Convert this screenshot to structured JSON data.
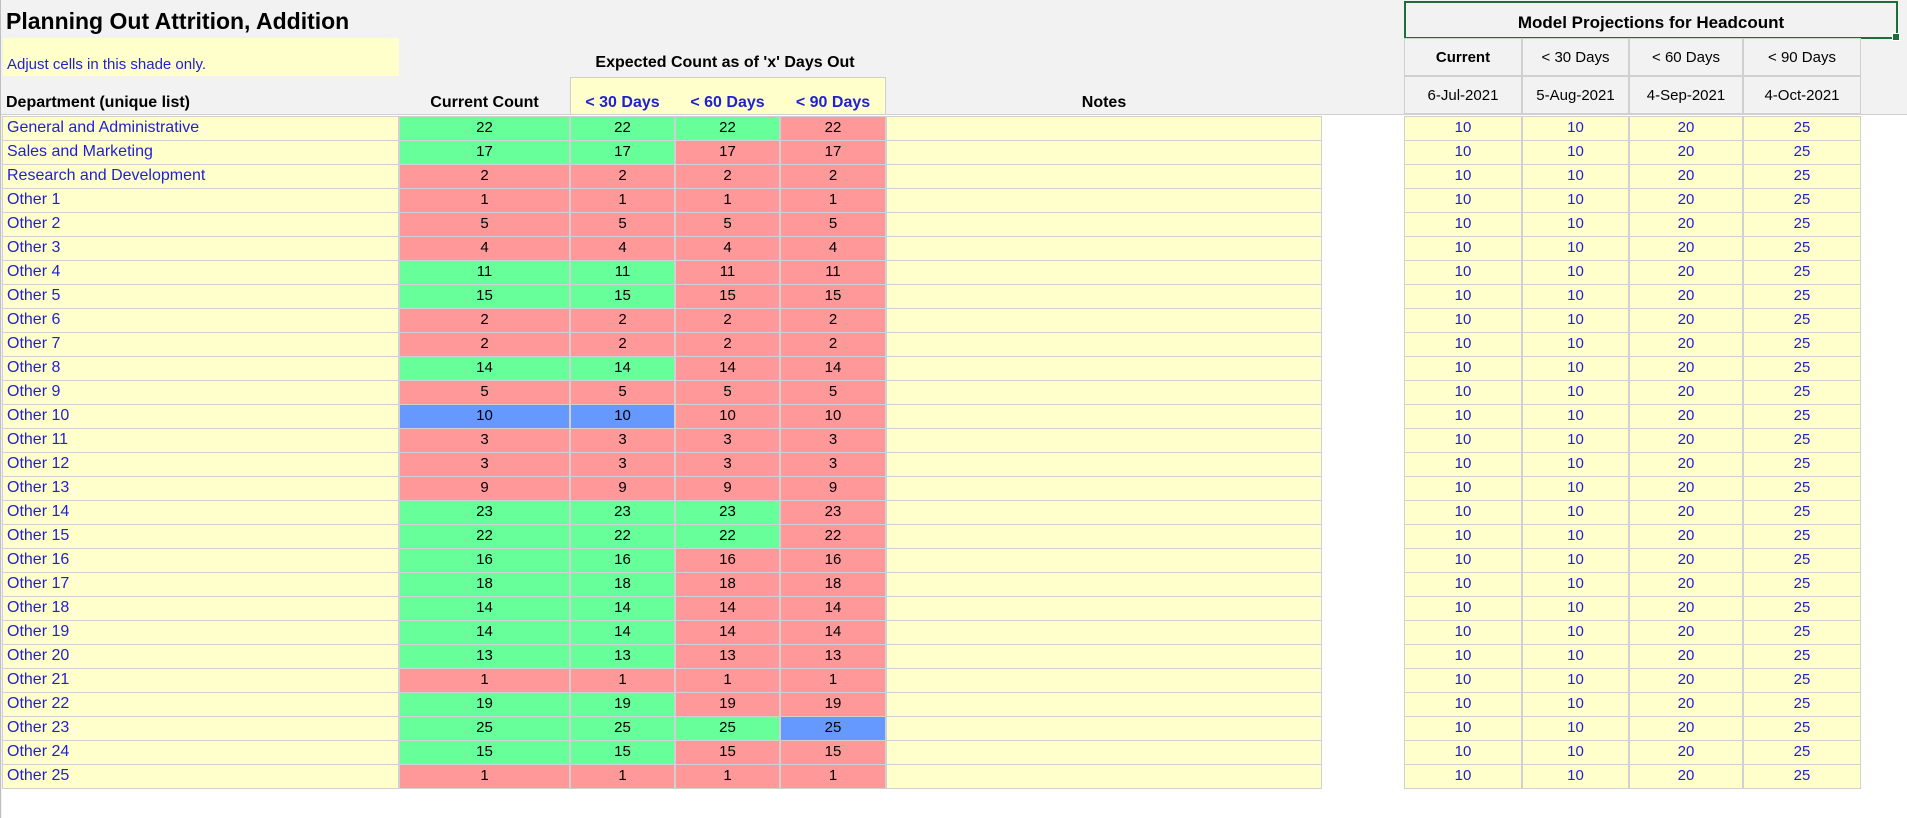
{
  "title": "Planning Out Attrition, Addition",
  "note": "Adjust cells in this shade only.",
  "expected_header": "Expected Count as of 'x' Days Out",
  "columns": {
    "department": "Department (unique list)",
    "current": "Current Count",
    "d30": "< 30 Days",
    "d60": "< 60 Days",
    "d90": "< 90 Days",
    "notes": "Notes"
  },
  "model": {
    "title": "Model Projections for Headcount",
    "headers": [
      "Current",
      "< 30 Days",
      "< 60 Days",
      "< 90 Days"
    ],
    "dates": [
      "6-Jul-2021",
      "5-Aug-2021",
      "4-Sep-2021",
      "4-Oct-2021"
    ]
  },
  "colors": {
    "green": "#66ff99",
    "red": "#ff9999",
    "blue": "#6699ff",
    "yellow": "#ffffcc",
    "text_blue": "#1f1fd6"
  },
  "rows": [
    {
      "dept": "General and Administrative",
      "current": 22,
      "d30": 22,
      "d60": 22,
      "d90": 22,
      "status": [
        "green",
        "green",
        "green",
        "red"
      ],
      "proj": [
        10,
        10,
        20,
        25
      ]
    },
    {
      "dept": "Sales and Marketing",
      "current": 17,
      "d30": 17,
      "d60": 17,
      "d90": 17,
      "status": [
        "green",
        "green",
        "red",
        "red"
      ],
      "proj": [
        10,
        10,
        20,
        25
      ]
    },
    {
      "dept": "Research and Development",
      "current": 2,
      "d30": 2,
      "d60": 2,
      "d90": 2,
      "status": [
        "red",
        "red",
        "red",
        "red"
      ],
      "proj": [
        10,
        10,
        20,
        25
      ]
    },
    {
      "dept": "Other 1",
      "current": 1,
      "d30": 1,
      "d60": 1,
      "d90": 1,
      "status": [
        "red",
        "red",
        "red",
        "red"
      ],
      "proj": [
        10,
        10,
        20,
        25
      ]
    },
    {
      "dept": "Other 2",
      "current": 5,
      "d30": 5,
      "d60": 5,
      "d90": 5,
      "status": [
        "red",
        "red",
        "red",
        "red"
      ],
      "proj": [
        10,
        10,
        20,
        25
      ]
    },
    {
      "dept": "Other 3",
      "current": 4,
      "d30": 4,
      "d60": 4,
      "d90": 4,
      "status": [
        "red",
        "red",
        "red",
        "red"
      ],
      "proj": [
        10,
        10,
        20,
        25
      ]
    },
    {
      "dept": "Other 4",
      "current": 11,
      "d30": 11,
      "d60": 11,
      "d90": 11,
      "status": [
        "green",
        "green",
        "red",
        "red"
      ],
      "proj": [
        10,
        10,
        20,
        25
      ]
    },
    {
      "dept": "Other 5",
      "current": 15,
      "d30": 15,
      "d60": 15,
      "d90": 15,
      "status": [
        "green",
        "green",
        "red",
        "red"
      ],
      "proj": [
        10,
        10,
        20,
        25
      ]
    },
    {
      "dept": "Other 6",
      "current": 2,
      "d30": 2,
      "d60": 2,
      "d90": 2,
      "status": [
        "red",
        "red",
        "red",
        "red"
      ],
      "proj": [
        10,
        10,
        20,
        25
      ]
    },
    {
      "dept": "Other 7",
      "current": 2,
      "d30": 2,
      "d60": 2,
      "d90": 2,
      "status": [
        "red",
        "red",
        "red",
        "red"
      ],
      "proj": [
        10,
        10,
        20,
        25
      ]
    },
    {
      "dept": "Other 8",
      "current": 14,
      "d30": 14,
      "d60": 14,
      "d90": 14,
      "status": [
        "green",
        "green",
        "red",
        "red"
      ],
      "proj": [
        10,
        10,
        20,
        25
      ]
    },
    {
      "dept": "Other 9",
      "current": 5,
      "d30": 5,
      "d60": 5,
      "d90": 5,
      "status": [
        "red",
        "red",
        "red",
        "red"
      ],
      "proj": [
        10,
        10,
        20,
        25
      ]
    },
    {
      "dept": "Other 10",
      "current": 10,
      "d30": 10,
      "d60": 10,
      "d90": 10,
      "status": [
        "blue",
        "blue",
        "red",
        "red"
      ],
      "proj": [
        10,
        10,
        20,
        25
      ]
    },
    {
      "dept": "Other 11",
      "current": 3,
      "d30": 3,
      "d60": 3,
      "d90": 3,
      "status": [
        "red",
        "red",
        "red",
        "red"
      ],
      "proj": [
        10,
        10,
        20,
        25
      ]
    },
    {
      "dept": "Other 12",
      "current": 3,
      "d30": 3,
      "d60": 3,
      "d90": 3,
      "status": [
        "red",
        "red",
        "red",
        "red"
      ],
      "proj": [
        10,
        10,
        20,
        25
      ]
    },
    {
      "dept": "Other 13",
      "current": 9,
      "d30": 9,
      "d60": 9,
      "d90": 9,
      "status": [
        "red",
        "red",
        "red",
        "red"
      ],
      "proj": [
        10,
        10,
        20,
        25
      ]
    },
    {
      "dept": "Other 14",
      "current": 23,
      "d30": 23,
      "d60": 23,
      "d90": 23,
      "status": [
        "green",
        "green",
        "green",
        "red"
      ],
      "proj": [
        10,
        10,
        20,
        25
      ]
    },
    {
      "dept": "Other 15",
      "current": 22,
      "d30": 22,
      "d60": 22,
      "d90": 22,
      "status": [
        "green",
        "green",
        "green",
        "red"
      ],
      "proj": [
        10,
        10,
        20,
        25
      ]
    },
    {
      "dept": "Other 16",
      "current": 16,
      "d30": 16,
      "d60": 16,
      "d90": 16,
      "status": [
        "green",
        "green",
        "red",
        "red"
      ],
      "proj": [
        10,
        10,
        20,
        25
      ]
    },
    {
      "dept": "Other 17",
      "current": 18,
      "d30": 18,
      "d60": 18,
      "d90": 18,
      "status": [
        "green",
        "green",
        "red",
        "red"
      ],
      "proj": [
        10,
        10,
        20,
        25
      ]
    },
    {
      "dept": "Other 18",
      "current": 14,
      "d30": 14,
      "d60": 14,
      "d90": 14,
      "status": [
        "green",
        "green",
        "red",
        "red"
      ],
      "proj": [
        10,
        10,
        20,
        25
      ]
    },
    {
      "dept": "Other 19",
      "current": 14,
      "d30": 14,
      "d60": 14,
      "d90": 14,
      "status": [
        "green",
        "green",
        "red",
        "red"
      ],
      "proj": [
        10,
        10,
        20,
        25
      ]
    },
    {
      "dept": "Other 20",
      "current": 13,
      "d30": 13,
      "d60": 13,
      "d90": 13,
      "status": [
        "green",
        "green",
        "red",
        "red"
      ],
      "proj": [
        10,
        10,
        20,
        25
      ]
    },
    {
      "dept": "Other 21",
      "current": 1,
      "d30": 1,
      "d60": 1,
      "d90": 1,
      "status": [
        "red",
        "red",
        "red",
        "red"
      ],
      "proj": [
        10,
        10,
        20,
        25
      ]
    },
    {
      "dept": "Other 22",
      "current": 19,
      "d30": 19,
      "d60": 19,
      "d90": 19,
      "status": [
        "green",
        "green",
        "red",
        "red"
      ],
      "proj": [
        10,
        10,
        20,
        25
      ]
    },
    {
      "dept": "Other 23",
      "current": 25,
      "d30": 25,
      "d60": 25,
      "d90": 25,
      "status": [
        "green",
        "green",
        "green",
        "blue"
      ],
      "proj": [
        10,
        10,
        20,
        25
      ]
    },
    {
      "dept": "Other 24",
      "current": 15,
      "d30": 15,
      "d60": 15,
      "d90": 15,
      "status": [
        "green",
        "green",
        "red",
        "red"
      ],
      "proj": [
        10,
        10,
        20,
        25
      ]
    },
    {
      "dept": "Other 25",
      "current": 1,
      "d30": 1,
      "d60": 1,
      "d90": 1,
      "status": [
        "red",
        "red",
        "red",
        "red"
      ],
      "proj": [
        10,
        10,
        20,
        25
      ]
    }
  ]
}
